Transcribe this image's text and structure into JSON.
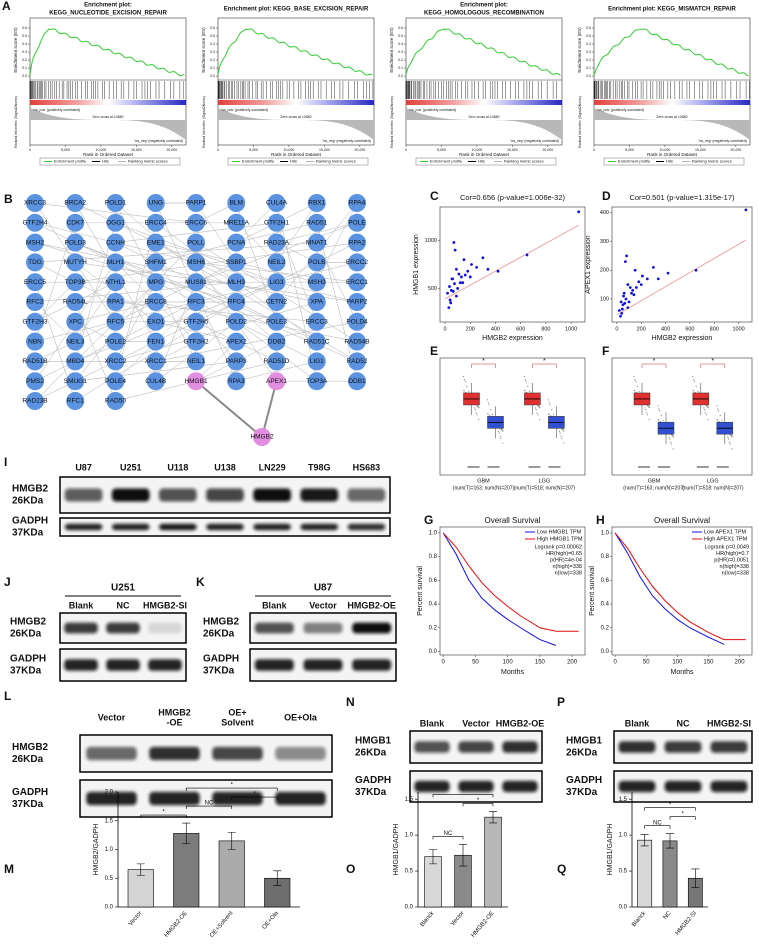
{
  "panel_A": {
    "label": "A",
    "plots": [
      {
        "title": [
          "Enrichment plot:",
          "KEGG_NUCLEOTIDE_EXCISION_REPAIR"
        ]
      },
      {
        "title": [
          "Enrichment plot: KEGG_BASE_EXCISION_REPAIR"
        ]
      },
      {
        "title": [
          "Enrichment plot:",
          "KEGG_HOMOLOGOUS_RECOMBINATION"
        ]
      },
      {
        "title": [
          "Enrichment plot: KEGG_MISMATCH_REPAIR"
        ]
      }
    ],
    "es_label": "Enrichment score (ES)",
    "metric_label": "Ranked list metric (Signal2Noise)",
    "x_label": "Rank in Ordered Dataset",
    "pos_label": "'na_pos' (positively correlated)",
    "neg_label": "'na_neg' (negatively correlated)",
    "zero_cross": "Zero cross at 10680",
    "xlim": [
      0,
      22000
    ],
    "xticks": [
      0,
      {
        "value": 5000,
        "label": "5,000"
      },
      {
        "value": 10000,
        "label": "10,000"
      },
      {
        "value": 15000,
        "label": "15,000"
      },
      {
        "value": 20000,
        "label": "20,000"
      }
    ],
    "es_ylim": [
      -0.05,
      0.7
    ],
    "es_yticks": [
      {
        "value": 0,
        "label": "0.0"
      },
      0.1,
      0.2,
      0.3,
      0.4,
      0.5,
      0.6
    ],
    "curve_color": "#33cc33",
    "legend": [
      "Enrichment profile",
      "Hits",
      "Ranking metric scores"
    ]
  },
  "panel_B": {
    "label": "B",
    "node_color": "#5b93e0",
    "edge_color": "#8a8a8a",
    "rows": [
      [
        "XRCC3",
        "BRCA2",
        "POLD1",
        "UNG",
        "PARP1",
        "BLM",
        "CUL4A",
        "RBX1",
        "RPA4"
      ],
      [
        "GTF2H4",
        "CDK7",
        "OGG1",
        "ERCC4",
        "ERCC6",
        "MRE11A",
        "GTF2H1",
        "RAD51",
        "POLE"
      ],
      [
        "MSH2",
        "POLD3",
        "CCNH",
        "EME1",
        "POLL",
        "PCNA",
        "RAD23A",
        "MNAT1",
        "RPA2"
      ],
      [
        "TDG",
        "MUTYH",
        "MLH1",
        "SHFM1",
        "MSH6",
        "SSBP1",
        "NEIL2",
        "POLB",
        "ERCC2"
      ],
      [
        "ERCC5",
        "TOP3B",
        "NTHL1",
        "MPG",
        "MUS81",
        "MLH3",
        "LIG3",
        "MSH3",
        "ERCC1"
      ],
      [
        "RFC2",
        "RAD54L",
        "RPA1",
        "ERCC8",
        "RFC3",
        "RFC4",
        "CETN2",
        "XPA",
        "PARP2"
      ],
      [
        "GTF2H3",
        "XPC",
        "RFC5",
        "EXO1",
        "GTF2H5",
        "POLD2",
        "POLE3",
        "ERCC3",
        "POLD4"
      ],
      [
        "NBN",
        "NEIL3",
        "POLE2",
        "FEN1",
        "GTF2H2",
        "APEX2",
        "DDB2",
        "RAD51C",
        "RAD54B"
      ],
      [
        "RAD51B",
        "MBD4",
        "XRCC2",
        "XRCC1",
        "NEIL1",
        "PARP3",
        "RAD51D",
        "LIG1",
        "RAD52"
      ],
      [
        "PMS2",
        "SMUG1",
        "POLE4",
        "CUL4B",
        {
          "name": "HMGB1",
          "color": "#e28ee0"
        },
        "RPA3",
        {
          "name": "APEX1",
          "color": "#e28ee0"
        },
        "TOP3A",
        "DDB1"
      ],
      [
        "RAD23B",
        "RFC1",
        "RAD50"
      ]
    ],
    "hub": {
      "name": "HMGB2",
      "color": "#e28ee0"
    }
  },
  "panel_C": {
    "label": "C",
    "title": "Cor=0.656 (p-value=1.006e-32)",
    "x_label": "HMGB2 expression",
    "y_label": "HMGB1 expression",
    "color": "#1010e0",
    "trend_color": "#e89090",
    "xlim": [
      -40,
      1110
    ],
    "xticks": [
      0,
      200,
      400,
      600,
      800,
      1000
    ],
    "ylim": [
      150,
      1350
    ],
    "yticks": [
      500,
      1000
    ],
    "x": [
      20,
      35,
      50,
      60,
      75,
      90,
      110,
      130,
      150,
      180,
      210,
      250,
      300,
      40,
      55,
      80,
      100,
      120,
      160,
      200,
      340,
      420,
      650,
      90,
      70,
      1060,
      30,
      65,
      140,
      45
    ],
    "y": [
      450,
      520,
      480,
      600,
      550,
      700,
      650,
      620,
      800,
      680,
      750,
      720,
      820,
      380,
      600,
      900,
      500,
      560,
      640,
      620,
      700,
      680,
      850,
      420,
      980,
      1300,
      300,
      470,
      560,
      350
    ],
    "trend": {
      "x": [
        0,
        1060
      ],
      "y": [
        390,
        1160
      ]
    }
  },
  "panel_D": {
    "label": "D",
    "title": "Cor=0.501 (p-value=1.315e-17)",
    "x_label": "HMGB2 expression",
    "y_label": "APEX1 expression",
    "color": "#1010e0",
    "trend_color": "#e89090",
    "xlim": [
      -40,
      1110
    ],
    "xticks": [
      0,
      200,
      400,
      600,
      800,
      1000
    ],
    "ylim": [
      20,
      420
    ],
    "yticks": [
      100,
      200,
      300,
      400
    ],
    "x": [
      20,
      35,
      50,
      60,
      75,
      90,
      110,
      130,
      150,
      180,
      210,
      250,
      300,
      40,
      55,
      80,
      100,
      120,
      160,
      200,
      340,
      420,
      650,
      90,
      70,
      1060,
      30,
      65,
      140,
      45
    ],
    "y": [
      60,
      90,
      80,
      120,
      100,
      150,
      140,
      130,
      200,
      160,
      180,
      170,
      210,
      50,
      110,
      250,
      90,
      120,
      140,
      150,
      170,
      190,
      200,
      70,
      230,
      410,
      40,
      85,
      115,
      65
    ],
    "trend": {
      "x": [
        0,
        1060
      ],
      "y": [
        45,
        305
      ]
    }
  },
  "panel_E": {
    "label": "E",
    "groups": [
      "GBM",
      "LGG"
    ],
    "group_notes": [
      "(num(T)=163; num(N)=207)",
      "(num(T)=518; num(N)=207)"
    ],
    "star": "*",
    "colors": [
      "#e03030",
      "#3050d0"
    ]
  },
  "panel_F": {
    "label": "F",
    "groups": [
      "GBM",
      "LGG"
    ],
    "group_notes": [
      "(num(T)=163; num(N)=207)",
      "(num(T)=518; num(N)=207)"
    ],
    "star": "*",
    "colors": [
      "#e03030",
      "#3050d0"
    ]
  },
  "panel_G": {
    "label": "G",
    "title": "Overall Survival",
    "x_label": "Months",
    "y_label": "Percent survival",
    "xlim": [
      -5,
      220
    ],
    "xticks": [
      0,
      50,
      100,
      150,
      200
    ],
    "ylim": [
      -0.03,
      1.05
    ],
    "yticks": [
      {
        "value": 0,
        "label": "0.0"
      },
      0.2,
      0.4,
      0.6,
      0.8,
      {
        "value": 1,
        "label": "1.0"
      }
    ],
    "stats": [
      "Logrank p=0.00062",
      "HR(high)=0.65",
      "p(HR)=4e-04",
      "n(high)=338",
      "n(low)=338"
    ],
    "series": [
      {
        "name": "Low HMGB1 TPM",
        "color": "#1010e0",
        "x": [
          0,
          20,
          40,
          60,
          80,
          100,
          120,
          150,
          175
        ],
        "values": [
          1,
          0.82,
          0.6,
          0.45,
          0.35,
          0.27,
          0.2,
          0.1,
          0.05
        ]
      },
      {
        "name": "High HMGB1 TPM",
        "color": "#e01010",
        "x": [
          0,
          20,
          40,
          60,
          80,
          100,
          120,
          150,
          175,
          210
        ],
        "values": [
          1,
          0.88,
          0.72,
          0.58,
          0.47,
          0.38,
          0.3,
          0.2,
          0.17,
          0.17
        ]
      }
    ]
  },
  "panel_H": {
    "label": "H",
    "title": "Overall Survival",
    "x_label": "Months",
    "y_label": "Percent survival",
    "xlim": [
      -5,
      220
    ],
    "xticks": [
      0,
      50,
      100,
      150,
      200
    ],
    "ylim": [
      -0.03,
      1.05
    ],
    "yticks": [
      {
        "value": 0,
        "label": "0.0"
      },
      0.2,
      0.4,
      0.6,
      0.8,
      {
        "value": 1,
        "label": "1.0"
      }
    ],
    "stats": [
      "Logrank p=0.0049",
      "HR(high)=0.7",
      "p(HR)=0.0051",
      "n(high)=338",
      "n(low)=338"
    ],
    "series": [
      {
        "name": "Low APEX1 TPM",
        "color": "#1010e0",
        "x": [
          0,
          20,
          40,
          60,
          80,
          100,
          120,
          150,
          175
        ],
        "values": [
          1,
          0.83,
          0.63,
          0.47,
          0.36,
          0.27,
          0.2,
          0.12,
          0.06
        ]
      },
      {
        "name": "High APEX1 TPM",
        "color": "#e01010",
        "x": [
          0,
          20,
          40,
          60,
          80,
          100,
          120,
          150,
          175,
          210
        ],
        "values": [
          1,
          0.87,
          0.7,
          0.55,
          0.43,
          0.33,
          0.25,
          0.16,
          0.1,
          0.1
        ]
      }
    ]
  },
  "panel_I": {
    "label": "I",
    "lanes": [
      "U87",
      "U251",
      "U118",
      "U138",
      "LN229",
      "T98G",
      "HS683"
    ],
    "rows": [
      {
        "name": "HMGB2",
        "size": "26KDa"
      },
      {
        "name": "GADPH",
        "size": "37KDa"
      }
    ]
  },
  "panel_J": {
    "label": "J",
    "cell": "U251",
    "lanes": [
      "Blank",
      "NC",
      "HMGB2-SI"
    ],
    "rows": [
      {
        "name": "HMGB2",
        "size": "26KDa"
      },
      {
        "name": "GADPH",
        "size": "37KDa"
      }
    ]
  },
  "panel_K": {
    "label": "K",
    "cell": "U87",
    "lanes": [
      "Blank",
      "Vector",
      "HMGB2-OE"
    ],
    "rows": [
      {
        "name": "HMGB2",
        "size": "26KDa"
      },
      {
        "name": "GADPH",
        "size": "37KDa"
      }
    ]
  },
  "panel_L": {
    "label": "L",
    "lanes": [
      [
        "Vector"
      ],
      [
        "HMGB2",
        "-OE"
      ],
      [
        "OE+",
        "Solvent"
      ],
      [
        "OE+Ola"
      ]
    ],
    "rows": [
      {
        "name": "HMGB2",
        "size": "26KDa"
      },
      {
        "name": "GADPH",
        "size": "37KDa"
      }
    ]
  },
  "panel_N": {
    "label": "N",
    "lanes": [
      "Blank",
      "Vector",
      "HMGB2-OE"
    ],
    "rows": [
      {
        "name": "HMGB1",
        "size": "26KDa"
      },
      {
        "name": "GADPH",
        "size": "37KDa"
      }
    ]
  },
  "panel_P": {
    "label": "P",
    "lanes": [
      "Blank",
      "NC",
      "HMGB2-SI"
    ],
    "rows": [
      {
        "name": "HMGB1",
        "size": "26KDa"
      },
      {
        "name": "GADPH",
        "size": "37KDa"
      }
    ]
  },
  "panel_M": {
    "label": "M",
    "type": "bar",
    "y_label": "HMGB2/GADPH",
    "categories": [
      "Vector",
      "HMGB2-OE",
      "OE+Solvent",
      "OE+Ola"
    ],
    "values": [
      0.65,
      1.28,
      1.15,
      0.5
    ],
    "errors": [
      0.1,
      0.18,
      0.15,
      0.13
    ],
    "colors": [
      "#d4d4d4",
      "#7c7c7c",
      "#ababab",
      "#6e6e6e"
    ],
    "ylim": [
      0,
      2
    ],
    "yticks": [
      {
        "value": 0,
        "label": "0.0"
      },
      0.5,
      {
        "value": 1,
        "label": "1.0"
      },
      1.5,
      {
        "value": 2,
        "label": "2.0"
      }
    ],
    "annotations": [
      {
        "text": "*",
        "pair": [
          0,
          1
        ]
      },
      {
        "text": "NC",
        "pair": [
          1,
          2
        ]
      },
      {
        "text": "*",
        "pair": [
          2,
          3
        ]
      },
      {
        "text": "*",
        "pair": [
          1,
          3
        ]
      }
    ]
  },
  "panel_O": {
    "label": "O",
    "type": "bar",
    "y_label": "HMGB1/GADPH",
    "categories": [
      "Blanck",
      "Vector",
      "HMGB2-OE"
    ],
    "values": [
      0.7,
      0.72,
      1.25
    ],
    "errors": [
      0.1,
      0.15,
      0.08
    ],
    "colors": [
      "#d8d8d8",
      "#8a8a8a",
      "#b8b8b8"
    ],
    "ylim": [
      0,
      1.6
    ],
    "yticks": [
      {
        "value": 0,
        "label": "0.0"
      },
      0.5,
      {
        "value": 1,
        "label": "1.0"
      },
      1.5
    ],
    "annotations": [
      {
        "text": "NC",
        "pair": [
          0,
          1
        ]
      },
      {
        "text": "*",
        "pair": [
          1,
          2
        ]
      },
      {
        "text": "*",
        "pair": [
          0,
          2
        ]
      }
    ]
  },
  "panel_Q": {
    "label": "Q",
    "type": "bar",
    "y_label": "HMGB1/GADPH",
    "categories": [
      "Blanck",
      "NC",
      "HMGB2-SI"
    ],
    "values": [
      0.93,
      0.92,
      0.4
    ],
    "errors": [
      0.08,
      0.1,
      0.13
    ],
    "colors": [
      "#d8d8d8",
      "#8a8a8a",
      "#777777"
    ],
    "ylim": [
      0,
      1.6
    ],
    "yticks": [
      {
        "value": 0,
        "label": "0.0"
      },
      0.5,
      {
        "value": 1,
        "label": "1.0"
      },
      1.5
    ],
    "annotations": [
      {
        "text": "NC",
        "pair": [
          0,
          1
        ]
      },
      {
        "text": "*",
        "pair": [
          1,
          2
        ]
      },
      {
        "text": "*",
        "pair": [
          0,
          2
        ]
      }
    ]
  }
}
